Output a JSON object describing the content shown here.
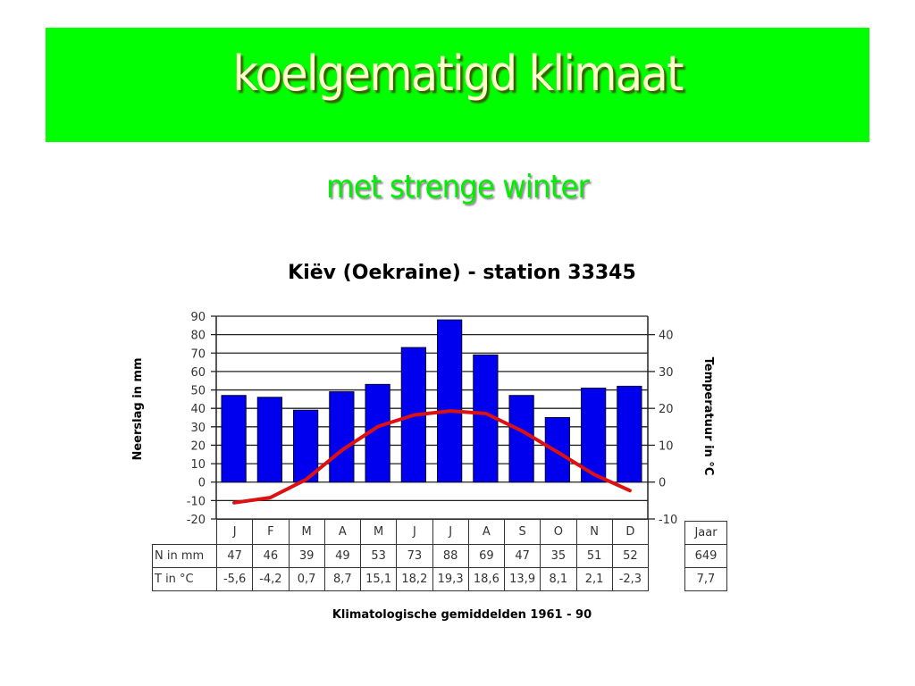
{
  "slide": {
    "title": "koelgematigd klimaat",
    "subtitle": "met strenge winter",
    "banner_color": "#00ff00",
    "subtitle_color": "#00ee00"
  },
  "chart_data": {
    "type": "bar+line",
    "title": "Kiëv (Oekraine) - station 33345",
    "caption": "Klimatologische gemiddelden 1961 - 90",
    "categories": [
      "J",
      "F",
      "M",
      "A",
      "M",
      "J",
      "J",
      "A",
      "S",
      "O",
      "N",
      "D"
    ],
    "series": [
      {
        "name": "N in mm",
        "type": "bar",
        "axis": "left",
        "color": "#0000ee",
        "values": [
          47,
          46,
          39,
          49,
          53,
          73,
          88,
          69,
          47,
          35,
          51,
          52
        ]
      },
      {
        "name": "T in °C",
        "type": "line",
        "axis": "right",
        "color": "#dd1111",
        "values": [
          -5.6,
          -4.2,
          0.7,
          8.7,
          15.1,
          18.2,
          19.3,
          18.6,
          13.9,
          8.1,
          2.1,
          -2.3
        ],
        "labels": [
          "-5,6",
          "-4,2",
          "0,7",
          "8,7",
          "15,1",
          "18,2",
          "19,3",
          "18,6",
          "13,9",
          "8,1",
          "2,1",
          "-2,3"
        ]
      }
    ],
    "ylabel": "Neerslag in mm",
    "y2label": "Temperatuur in °C",
    "ylim": [
      -20,
      90
    ],
    "y2lim": [
      -10,
      45
    ],
    "yticks": [
      90,
      80,
      70,
      60,
      50,
      40,
      30,
      20,
      10,
      0,
      -10,
      -20
    ],
    "y2ticks": [
      40,
      30,
      20,
      10,
      0,
      -10
    ],
    "grid": true,
    "table": {
      "row_labels": [
        "N in mm",
        "T in °C"
      ],
      "year_header": "Jaar",
      "year_total_precip": "649",
      "year_mean_temp": "7,7"
    }
  }
}
